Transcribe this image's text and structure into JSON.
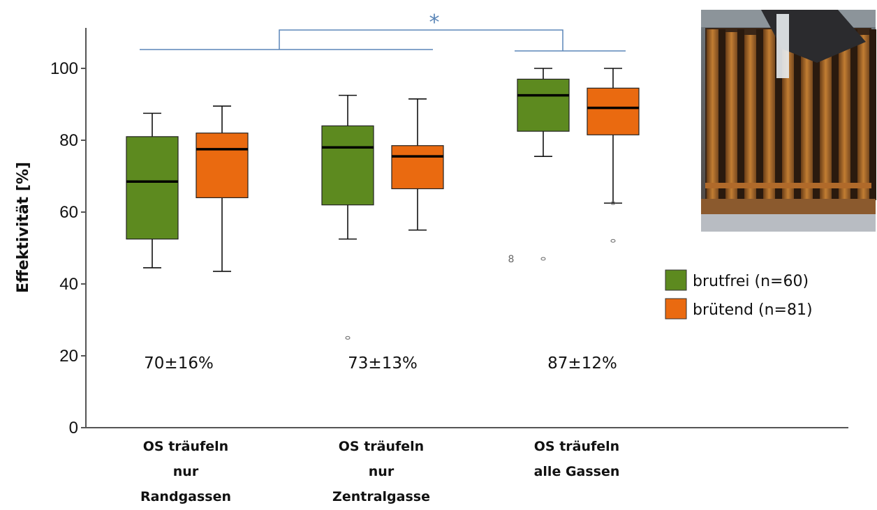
{
  "chart_data": {
    "type": "box",
    "title": "",
    "ylabel": "Effektivität [%]",
    "ylim": [
      0,
      100
    ],
    "yticks": [
      0,
      20,
      40,
      60,
      80,
      100
    ],
    "categories": [
      {
        "lines": [
          "OS träufeln",
          "nur",
          "Randgassen"
        ],
        "summary": "70±16%"
      },
      {
        "lines": [
          "OS träufeln",
          "nur",
          "Zentralgasse"
        ],
        "summary": "73±13%"
      },
      {
        "lines": [
          "OS träufeln",
          "alle Gassen"
        ],
        "summary": "87±12%"
      }
    ],
    "series": [
      {
        "name": "brutfrei (n=60)",
        "color": "#5d8a1f",
        "boxes": [
          {
            "min": 44.5,
            "q1": 52.5,
            "median": 68.5,
            "q3": 81,
            "max": 87.5,
            "outliers": []
          },
          {
            "min": 52.5,
            "q1": 62,
            "median": 78,
            "q3": 84,
            "max": 92.5,
            "outliers": [
              25
            ]
          },
          {
            "min": 75.5,
            "q1": 82.5,
            "median": 92.5,
            "q3": 97,
            "max": 100,
            "outliers": [
              47
            ]
          }
        ]
      },
      {
        "name": "brütend (n=81)",
        "color": "#ea6a10",
        "boxes": [
          {
            "min": 43.5,
            "q1": 64,
            "median": 77.5,
            "q3": 82,
            "max": 89.5,
            "outliers": []
          },
          {
            "min": 55,
            "q1": 66.5,
            "median": 75.5,
            "q3": 78.5,
            "max": 91.5,
            "outliers": []
          },
          {
            "min": 62.5,
            "q1": 81.5,
            "median": 89,
            "q3": 94.5,
            "max": 100,
            "outliers": [
              62.5,
              52
            ]
          }
        ]
      }
    ],
    "outlier_labels": [
      {
        "series": 0,
        "category": 2,
        "text": "8"
      }
    ],
    "significance": {
      "marker": "*",
      "compare": [
        [
          0,
          1
        ],
        [
          2
        ]
      ]
    },
    "legend": "right",
    "grid": false,
    "inset_photo": "beehive frames being treated (photo)"
  }
}
